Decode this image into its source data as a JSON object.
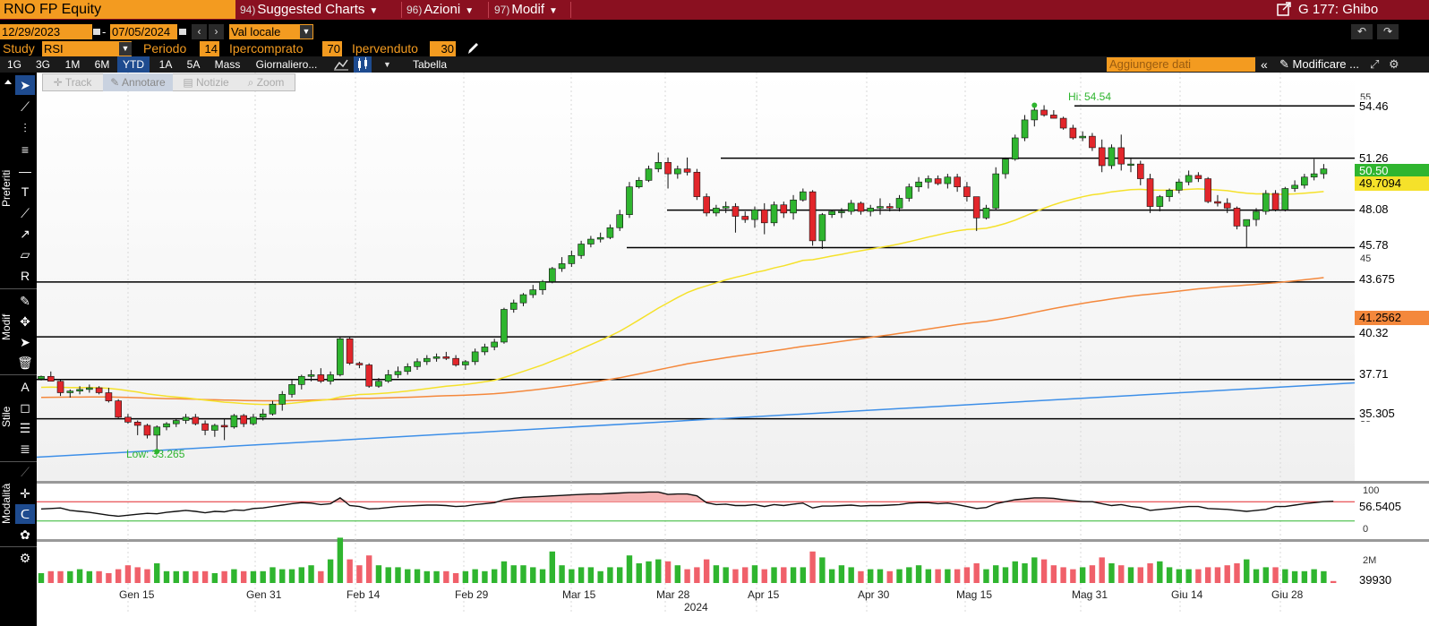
{
  "header": {
    "ticker": "RNO FP Equity",
    "menus": [
      {
        "num": "94)",
        "label": "Suggested Charts"
      },
      {
        "num": "96)",
        "label": "Azioni"
      },
      {
        "num": "97)",
        "label": "Modif"
      }
    ],
    "right_label": "G 177: Ghibo"
  },
  "daterow": {
    "start": "12/29/2023",
    "dash": "-",
    "end": "07/05/2024",
    "currency": "Val locale"
  },
  "studyrow": {
    "study_label": "Study",
    "study_value": "RSI",
    "periodo_label": "Periodo",
    "periodo_value": "14",
    "ipercomprato_label": "Ipercomprato",
    "ipercomprato_value": "70",
    "ipervenduto_label": "Ipervenduto",
    "ipervenduto_value": "30"
  },
  "tabs": [
    "1G",
    "3G",
    "1M",
    "6M",
    "YTD",
    "1A",
    "5A",
    "Mass",
    "Giornaliero...",
    "Tabella"
  ],
  "active_tab": "YTD",
  "toolbar_right": {
    "add_data_placeholder": "Aggiungere dati",
    "modify_label": "Modificare ..."
  },
  "annotation_tabs": [
    "Track",
    "Annotare",
    "Notizie",
    "Zoom"
  ],
  "left_labels": {
    "preferiti": "Preferiti",
    "modif": "Modif",
    "stile": "Stile",
    "modalita": "Modalità"
  },
  "chart_data": {
    "type": "candlestick",
    "y_range": [
      31.5,
      56.5
    ],
    "hi_label": "Hi: 54.54",
    "low_label": "Low: 33.265",
    "x_labels": [
      "Gen 15",
      "Gen 31",
      "Feb 14",
      "Feb 29",
      "Mar 15",
      "Mar 28",
      "Apr 15",
      "Apr 30",
      "Mag 15",
      "Mag 31",
      "Giu 14",
      "Giu 28"
    ],
    "year_label": "2024",
    "axis_ticks": [
      "55",
      "45",
      "35"
    ],
    "horizontal_levels": [
      "54.46",
      "51.26",
      "48.08",
      "45.78",
      "43.675",
      "40.32",
      "37.71",
      "35.305"
    ],
    "last_price": "50.50",
    "ma_short_value": "49.7094",
    "ma_long_value": "41.2562",
    "colors": {
      "up": "#2fb52f",
      "down": "#e2262b",
      "ma_short": "#f5e12a",
      "ma_long": "#f4883c",
      "trend": "#3d8fe8"
    },
    "candles": [
      [
        37.75,
        37.95,
        37.65,
        37.9
      ],
      [
        37.9,
        38.2,
        37.7,
        37.6
      ],
      [
        37.6,
        37.7,
        36.7,
        36.9
      ],
      [
        36.9,
        37.1,
        36.6,
        37.0
      ],
      [
        37.0,
        37.3,
        36.8,
        37.1
      ],
      [
        37.1,
        37.4,
        36.9,
        37.2
      ],
      [
        37.2,
        37.3,
        36.8,
        36.9
      ],
      [
        36.9,
        37.2,
        36.3,
        36.4
      ],
      [
        36.4,
        36.5,
        35.3,
        35.4
      ],
      [
        35.4,
        35.6,
        35.0,
        35.1
      ],
      [
        35.1,
        35.2,
        34.3,
        34.9
      ],
      [
        34.9,
        35.0,
        34.1,
        34.3
      ],
      [
        34.3,
        34.9,
        33.3,
        34.8
      ],
      [
        34.8,
        35.1,
        34.6,
        35.0
      ],
      [
        35.0,
        35.3,
        34.8,
        35.2
      ],
      [
        35.2,
        35.6,
        35.0,
        35.4
      ],
      [
        35.4,
        35.6,
        34.9,
        35.0
      ],
      [
        35.0,
        35.2,
        34.3,
        34.6
      ],
      [
        34.6,
        35.0,
        34.2,
        34.9
      ],
      [
        34.9,
        35.3,
        34.0,
        34.8
      ],
      [
        34.8,
        35.6,
        34.7,
        35.5
      ],
      [
        35.5,
        35.6,
        34.8,
        35.0
      ],
      [
        35.0,
        35.6,
        34.9,
        35.4
      ],
      [
        35.4,
        35.9,
        35.2,
        35.6
      ],
      [
        35.6,
        36.4,
        35.5,
        36.2
      ],
      [
        36.2,
        37.0,
        35.8,
        36.8
      ],
      [
        36.8,
        37.7,
        36.6,
        37.4
      ],
      [
        37.4,
        38.0,
        37.1,
        37.9
      ],
      [
        37.9,
        38.3,
        37.6,
        38.0
      ],
      [
        38.0,
        38.4,
        37.5,
        37.6
      ],
      [
        37.6,
        38.2,
        37.4,
        38.0
      ],
      [
        38.0,
        40.3,
        37.9,
        40.2
      ],
      [
        40.2,
        40.3,
        38.6,
        38.7
      ],
      [
        38.7,
        38.8,
        38.4,
        38.6
      ],
      [
        38.6,
        38.7,
        37.2,
        37.3
      ],
      [
        37.3,
        37.8,
        37.2,
        37.6
      ],
      [
        37.6,
        38.3,
        37.5,
        38.0
      ],
      [
        38.0,
        38.5,
        37.8,
        38.2
      ],
      [
        38.2,
        38.7,
        38.0,
        38.5
      ],
      [
        38.5,
        39.0,
        38.3,
        38.8
      ],
      [
        38.8,
        39.2,
        38.6,
        39.0
      ],
      [
        39.0,
        39.3,
        38.8,
        39.1
      ],
      [
        39.1,
        39.4,
        38.9,
        39.0
      ],
      [
        39.0,
        39.2,
        38.5,
        38.6
      ],
      [
        38.6,
        38.9,
        38.3,
        38.8
      ],
      [
        38.8,
        39.6,
        38.6,
        39.4
      ],
      [
        39.4,
        39.9,
        39.2,
        39.7
      ],
      [
        39.7,
        40.2,
        39.5,
        40.0
      ],
      [
        40.0,
        42.1,
        39.9,
        42.0
      ],
      [
        42.0,
        42.6,
        41.8,
        42.4
      ],
      [
        42.4,
        43.0,
        42.2,
        42.9
      ],
      [
        42.9,
        43.5,
        42.7,
        43.2
      ],
      [
        43.2,
        43.8,
        42.9,
        43.7
      ],
      [
        43.7,
        44.6,
        43.6,
        44.5
      ],
      [
        44.5,
        45.2,
        44.3,
        44.8
      ],
      [
        44.8,
        45.6,
        44.6,
        45.3
      ],
      [
        45.3,
        46.2,
        45.1,
        46.0
      ],
      [
        46.0,
        46.5,
        45.8,
        46.3
      ],
      [
        46.3,
        46.7,
        46.1,
        46.4
      ],
      [
        46.4,
        47.2,
        46.3,
        47.0
      ],
      [
        47.0,
        48.1,
        46.8,
        47.8
      ],
      [
        47.8,
        49.8,
        47.6,
        49.5
      ],
      [
        49.5,
        50.1,
        49.4,
        49.9
      ],
      [
        49.9,
        50.8,
        49.8,
        50.6
      ],
      [
        50.6,
        51.6,
        50.4,
        51.0
      ],
      [
        51.0,
        51.3,
        49.4,
        50.3
      ],
      [
        50.3,
        50.8,
        50.0,
        50.6
      ],
      [
        50.6,
        51.3,
        50.2,
        50.4
      ],
      [
        50.4,
        50.6,
        48.7,
        48.9
      ],
      [
        48.9,
        49.1,
        47.7,
        47.9
      ],
      [
        47.9,
        48.4,
        47.7,
        48.2
      ],
      [
        48.2,
        48.6,
        47.9,
        48.3
      ],
      [
        48.3,
        48.5,
        46.7,
        47.7
      ],
      [
        47.7,
        48.0,
        47.3,
        47.5
      ],
      [
        47.5,
        48.3,
        47.0,
        48.1
      ],
      [
        48.1,
        48.5,
        46.6,
        47.3
      ],
      [
        47.3,
        48.6,
        47.1,
        48.4
      ],
      [
        48.4,
        48.6,
        47.6,
        47.9
      ],
      [
        47.9,
        49.0,
        47.5,
        48.7
      ],
      [
        48.7,
        49.4,
        48.6,
        49.2
      ],
      [
        49.2,
        49.3,
        45.9,
        46.2
      ],
      [
        46.2,
        47.9,
        45.7,
        47.8
      ],
      [
        47.8,
        48.1,
        47.6,
        48.0
      ],
      [
        48.0,
        48.2,
        47.6,
        48.0
      ],
      [
        48.0,
        48.7,
        47.8,
        48.5
      ],
      [
        48.5,
        48.6,
        47.8,
        48.0
      ],
      [
        48.0,
        48.4,
        47.7,
        48.2
      ],
      [
        48.2,
        48.8,
        47.8,
        48.3
      ],
      [
        48.3,
        48.5,
        48.0,
        48.2
      ],
      [
        48.2,
        49.0,
        48.0,
        48.8
      ],
      [
        48.8,
        49.7,
        48.6,
        49.5
      ],
      [
        49.5,
        50.1,
        49.2,
        49.8
      ],
      [
        49.8,
        50.2,
        49.4,
        50.0
      ],
      [
        50.0,
        50.2,
        49.6,
        49.7
      ],
      [
        49.7,
        50.3,
        49.4,
        50.1
      ],
      [
        50.1,
        50.3,
        49.2,
        49.5
      ],
      [
        49.5,
        49.8,
        48.6,
        48.9
      ],
      [
        48.9,
        48.9,
        46.8,
        47.6
      ],
      [
        47.6,
        48.4,
        47.5,
        48.2
      ],
      [
        48.2,
        50.7,
        48.1,
        50.3
      ],
      [
        50.3,
        51.3,
        50.0,
        51.2
      ],
      [
        51.2,
        52.7,
        51.1,
        52.5
      ],
      [
        52.5,
        53.9,
        52.3,
        53.6
      ],
      [
        53.6,
        54.5,
        53.2,
        54.2
      ],
      [
        54.2,
        54.5,
        53.8,
        53.9
      ],
      [
        53.9,
        54.2,
        53.7,
        53.7
      ],
      [
        53.7,
        53.8,
        53.0,
        53.1
      ],
      [
        53.1,
        53.3,
        52.4,
        52.5
      ],
      [
        52.5,
        52.9,
        52.3,
        52.6
      ],
      [
        52.6,
        52.8,
        51.7,
        51.9
      ],
      [
        51.9,
        52.4,
        50.4,
        50.8
      ],
      [
        50.8,
        52.1,
        50.6,
        51.9
      ],
      [
        51.9,
        52.7,
        50.5,
        50.9
      ],
      [
        50.9,
        51.3,
        50.4,
        50.9
      ],
      [
        50.9,
        51.1,
        49.6,
        50.0
      ],
      [
        50.0,
        50.3,
        47.9,
        48.3
      ],
      [
        48.3,
        49.0,
        48.0,
        48.9
      ],
      [
        48.9,
        49.4,
        48.6,
        49.3
      ],
      [
        49.3,
        50.0,
        49.1,
        49.8
      ],
      [
        49.8,
        50.5,
        49.6,
        50.2
      ],
      [
        50.2,
        50.4,
        49.8,
        50.0
      ],
      [
        50.0,
        50.1,
        48.5,
        48.6
      ],
      [
        48.6,
        49.0,
        48.3,
        48.5
      ],
      [
        48.5,
        48.8,
        47.9,
        48.2
      ],
      [
        48.2,
        48.3,
        46.9,
        47.1
      ],
      [
        47.1,
        47.5,
        45.8,
        47.5
      ],
      [
        47.5,
        48.2,
        47.1,
        48.0
      ],
      [
        48.0,
        49.3,
        47.8,
        49.1
      ],
      [
        49.1,
        49.3,
        48.0,
        48.1
      ],
      [
        48.1,
        49.5,
        48.0,
        49.4
      ],
      [
        49.4,
        49.9,
        49.2,
        49.6
      ],
      [
        49.6,
        50.3,
        49.4,
        50.1
      ],
      [
        50.1,
        51.2,
        49.9,
        50.3
      ],
      [
        50.3,
        50.9,
        50.0,
        50.6
      ]
    ],
    "rsi": {
      "label": "56.5405",
      "ticks": [
        "100",
        "0"
      ],
      "overbought": 70,
      "oversold": 30,
      "values": [
        55,
        56,
        57,
        52,
        50,
        48,
        45,
        42,
        40,
        42,
        44,
        46,
        45,
        48,
        50,
        52,
        50,
        47,
        50,
        49,
        53,
        52,
        56,
        57,
        60,
        63,
        66,
        68,
        67,
        64,
        66,
        78,
        62,
        60,
        55,
        56,
        58,
        60,
        61,
        62,
        63,
        63,
        62,
        60,
        61,
        64,
        66,
        68,
        74,
        77,
        79,
        80,
        81,
        82,
        83,
        84,
        85,
        86,
        86,
        87,
        88,
        89,
        89,
        90,
        90,
        85,
        86,
        86,
        82,
        68,
        64,
        65,
        62,
        62,
        64,
        60,
        64,
        62,
        65,
        67,
        57,
        61,
        61,
        62,
        63,
        61,
        62,
        62,
        63,
        64,
        67,
        68,
        68,
        66,
        67,
        64,
        60,
        56,
        58,
        66,
        70,
        74,
        76,
        78,
        78,
        77,
        74,
        72,
        70,
        70,
        66,
        62,
        64,
        60,
        58,
        52,
        54,
        56,
        58,
        60,
        60,
        56,
        55,
        54,
        52,
        50,
        52,
        54,
        60,
        60,
        63,
        66,
        68,
        70,
        71
      ]
    },
    "volume": {
      "label": "39930",
      "tick": "2M",
      "values": [
        0.5,
        0.6,
        0.6,
        0.6,
        0.7,
        0.6,
        0.6,
        0.5,
        0.7,
        0.9,
        0.8,
        0.7,
        1.0,
        0.6,
        0.6,
        0.6,
        0.6,
        0.6,
        0.5,
        0.6,
        0.7,
        0.6,
        0.6,
        0.6,
        0.8,
        0.7,
        0.7,
        0.8,
        0.9,
        0.6,
        1.2,
        2.3,
        1.2,
        0.9,
        1.4,
        0.9,
        0.8,
        0.8,
        0.7,
        0.7,
        0.6,
        0.6,
        0.6,
        0.5,
        0.6,
        0.7,
        0.6,
        0.7,
        1.1,
        0.9,
        0.9,
        0.8,
        0.7,
        1.6,
        0.9,
        0.7,
        0.8,
        0.8,
        0.6,
        0.8,
        0.8,
        1.4,
        1.0,
        1.1,
        1.2,
        1.1,
        0.9,
        0.7,
        0.8,
        1.2,
        0.9,
        0.8,
        0.7,
        0.8,
        0.9,
        0.7,
        0.8,
        0.8,
        0.8,
        0.8,
        1.6,
        1.3,
        0.7,
        0.9,
        0.8,
        0.6,
        0.7,
        0.7,
        0.6,
        0.7,
        0.8,
        0.9,
        0.7,
        0.7,
        0.7,
        0.7,
        0.8,
        1.0,
        0.7,
        0.9,
        0.8,
        1.1,
        1.0,
        1.3,
        1.2,
        0.9,
        0.8,
        0.7,
        0.8,
        0.9,
        1.3,
        1.0,
        0.9,
        0.8,
        0.8,
        1.0,
        1.1,
        0.8,
        0.7,
        0.7,
        0.7,
        0.8,
        0.8,
        0.9,
        1.0,
        1.2,
        0.7,
        0.8,
        0.8,
        0.7,
        0.6,
        0.6,
        0.7,
        0.6,
        0.1
      ]
    }
  }
}
